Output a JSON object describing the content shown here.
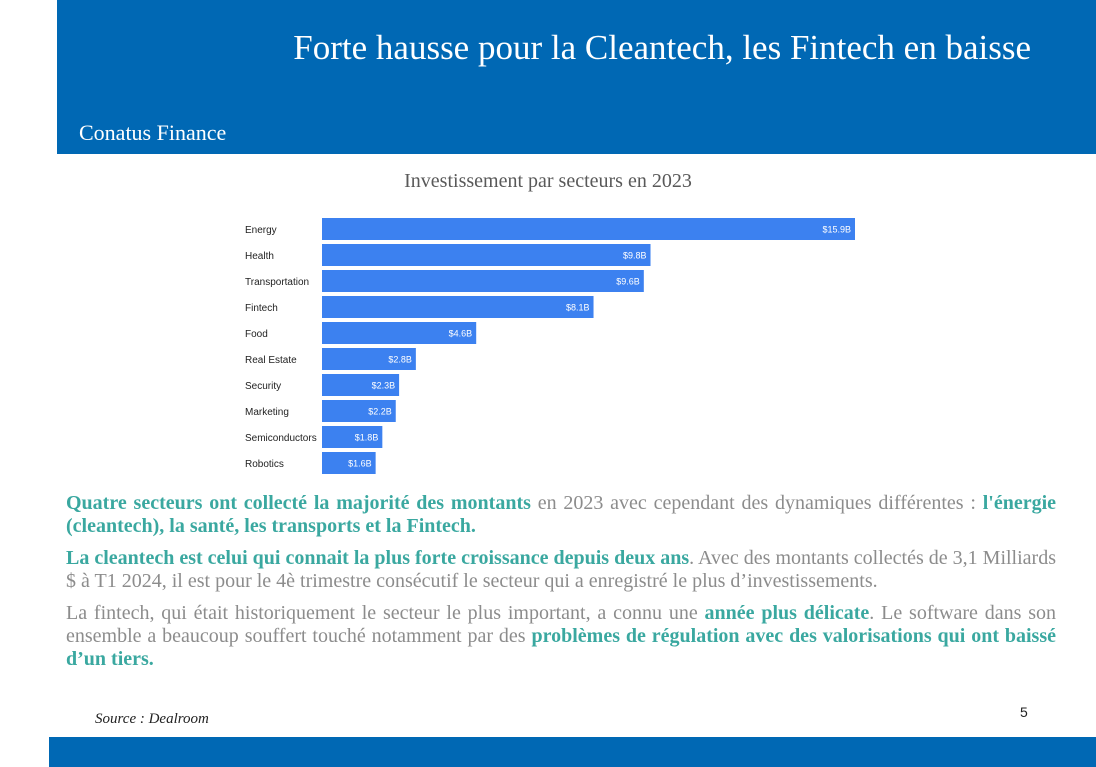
{
  "header": {
    "title": "Forte hausse pour la Cleantech, les Fintech en baisse",
    "company": "Conatus Finance"
  },
  "colors": {
    "header_bg": "#0068b4",
    "bar": "#3c81f0",
    "highlight": "#3aa8a0",
    "body_text": "#8c8c8c"
  },
  "chart_title": "Investissement par secteurs en 2023",
  "chart_data": {
    "type": "bar",
    "orientation": "horizontal",
    "categories": [
      "Energy",
      "Health",
      "Transportation",
      "Fintech",
      "Food",
      "Real Estate",
      "Security",
      "Marketing",
      "Semiconductors",
      "Robotics"
    ],
    "values": [
      15.9,
      9.8,
      9.6,
      8.1,
      4.6,
      2.8,
      2.3,
      2.2,
      1.8,
      1.6
    ],
    "labels": [
      "$15.9B",
      "$9.8B",
      "$9.6B",
      "$8.1B",
      "$4.6B",
      "$2.8B",
      "$2.3B",
      "$2.2B",
      "$1.8B",
      "$1.6B"
    ],
    "unit": "billion USD",
    "grid": false,
    "data_labels": "inside-end"
  },
  "body": {
    "p1": {
      "hl1": "Quatre secteurs ont collecté la majorité des montants",
      "t1": " en 2023 avec cependant des dynamiques différentes : ",
      "hl2": "l'énergie (cleantech), la santé, les transports et la Fintech."
    },
    "p2": {
      "hl1": "La cleantech est celui qui connait la plus forte croissance depuis deux ans",
      "t1": ". Avec des montants collectés de 3,1 Milliards $ à T1 2024, il est pour le 4è trimestre consécutif le secteur qui a enregistré le plus d’investissements."
    },
    "p3": {
      "t1": "La fintech, qui était historiquement le secteur le plus important, a connu une ",
      "hl1": "année plus délicate",
      "t2": ". Le software dans son ensemble a beaucoup souffert touché notamment par des ",
      "hl2": "problèmes de régulation avec des valorisations qui ont baissé d’un tiers."
    }
  },
  "source": "Source : Dealroom",
  "page_number": "5"
}
